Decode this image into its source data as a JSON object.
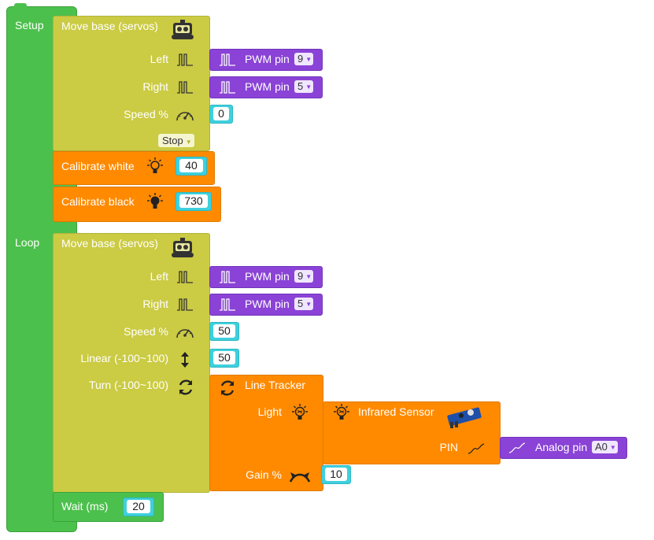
{
  "setup": {
    "label": "Setup",
    "move_base": {
      "title": "Move base (servos)",
      "left_label": "Left",
      "right_label": "Right",
      "speed_label": "Speed %",
      "left_pwm": {
        "label": "PWM pin",
        "value": "9"
      },
      "right_pwm": {
        "label": "PWM pin",
        "value": "5"
      },
      "speed_value": "0",
      "mode_value": "Stop"
    },
    "calibrate_white": {
      "label": "Calibrate white",
      "value": "40"
    },
    "calibrate_black": {
      "label": "Calibrate black",
      "value": "730"
    }
  },
  "loop": {
    "label": "Loop",
    "move_base": {
      "title": "Move base (servos)",
      "left_label": "Left",
      "right_label": "Right",
      "speed_label": "Speed %",
      "linear_label": "Linear (-100~100)",
      "turn_label": "Turn (-100~100)",
      "left_pwm": {
        "label": "PWM pin",
        "value": "9"
      },
      "right_pwm": {
        "label": "PWM pin",
        "value": "5"
      },
      "speed_value": "50",
      "linear_value": "50"
    },
    "line_tracker": {
      "title": "Line Tracker",
      "light_label": "Light",
      "gain_label": "Gain %",
      "gain_value": "10"
    },
    "infrared_sensor": {
      "title": "Infrared Sensor",
      "pin_label": "PIN",
      "analog": {
        "label": "Analog pin",
        "value": "A0"
      }
    },
    "wait": {
      "label": "Wait (ms)",
      "value": "20"
    }
  },
  "colors": {
    "green": "#4cc04c",
    "olive": "#cbcb44",
    "purple": "#8a43d6",
    "orange": "#ff8a00",
    "cyan": "#3fd0dd"
  }
}
